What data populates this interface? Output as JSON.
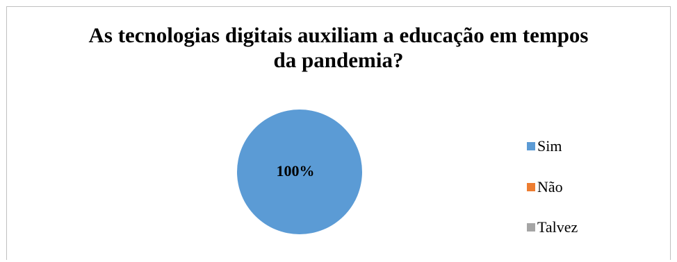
{
  "chart_data": {
    "type": "pie",
    "title": "As tecnologias digitais auxiliam a educação em tempos da pandemia?",
    "title_lines": [
      "As tecnologias digitais auxiliam a educação em tempos",
      "da pandemia?"
    ],
    "categories": [
      "Sim",
      "Não",
      "Talvez"
    ],
    "values": [
      100,
      0,
      0
    ],
    "data_labels": [
      "100%",
      "",
      ""
    ],
    "colors": [
      "#5b9bd5",
      "#ed7d31",
      "#a5a5a5"
    ],
    "legend_position": "right"
  }
}
